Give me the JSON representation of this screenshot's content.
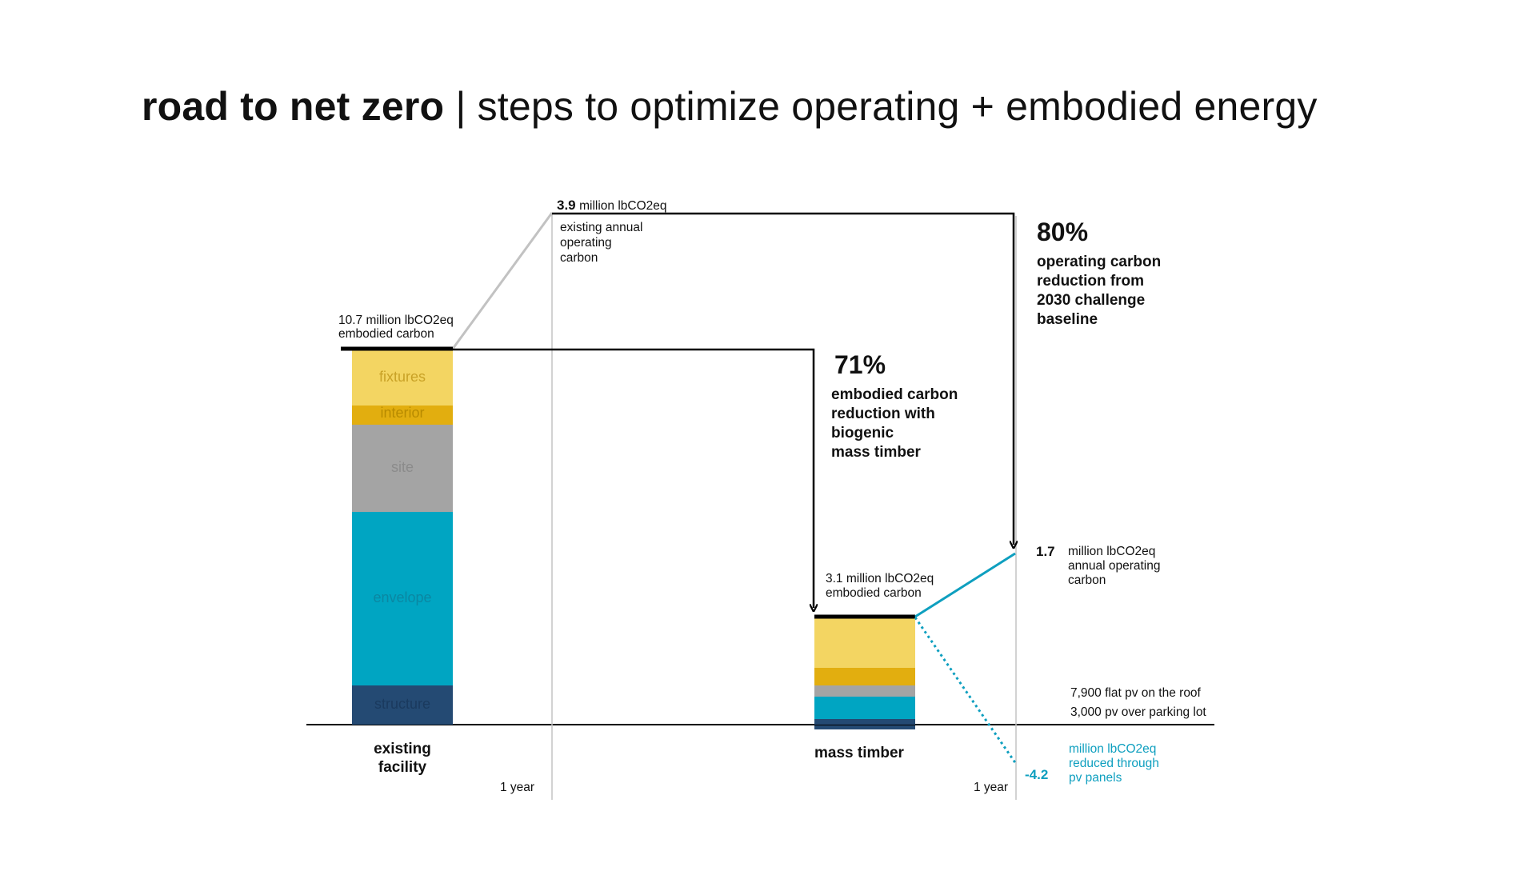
{
  "title": {
    "bold": "road to net zero",
    "separator": " | ",
    "rest": "steps to optimize operating + embodied energy"
  },
  "existing": {
    "embodied_value": "10.7 million lbCO2eq",
    "embodied_label": "embodied carbon",
    "segments": [
      {
        "label": "fixtures",
        "color": "#f3d562"
      },
      {
        "label": "interior",
        "color": "#e2ae0f"
      },
      {
        "label": "site",
        "color": "#a4a4a4"
      },
      {
        "label": "envelope",
        "color": "#00a5c2"
      },
      {
        "label": "structure",
        "color": "#244a73"
      }
    ],
    "caption_line1": "existing",
    "caption_line2": "facility",
    "year_label": "1 year",
    "operating_value": "3.9",
    "operating_unit": "million lbCO2eq",
    "operating_line1": "existing annual",
    "operating_line2": "operating",
    "operating_line3": "carbon"
  },
  "mass_timber": {
    "embodied_value": "3.1 million lbCO2eq",
    "embodied_label": "embodied carbon",
    "caption": "mass timber",
    "year_label": "1 year",
    "segment_colors": [
      "#f3d562",
      "#e2ae0f",
      "#a4a4a4",
      "#00a5c2",
      "#244a73"
    ],
    "operating_value": "1.7",
    "operating_line1": "million lbCO2eq",
    "operating_line2": "annual operating",
    "operating_line3": "carbon",
    "pv_line1": "7,900 flat pv on the roof",
    "pv_line2": "3,000 pv over parking lot",
    "pv_value": "-4.2",
    "pv_text1": "million lbCO2eq",
    "pv_text2": "reduced through",
    "pv_text3": "pv panels"
  },
  "callouts": {
    "embodied_pct": "71%",
    "embodied_line1": "embodied carbon",
    "embodied_line2": "reduction with",
    "embodied_line3": "biogenic",
    "embodied_line4": "mass timber",
    "operating_pct": "80%",
    "operating_line1": "operating carbon",
    "operating_line2": "reduction from",
    "operating_line3": "2030 challenge",
    "operating_line4": "baseline"
  },
  "colors": {
    "fixtures": "#f3d562",
    "interior": "#e2ae0f",
    "site": "#a4a4a4",
    "envelope": "#00a5c2",
    "structure": "#244a73",
    "pv_line": "#0e9fbf"
  }
}
